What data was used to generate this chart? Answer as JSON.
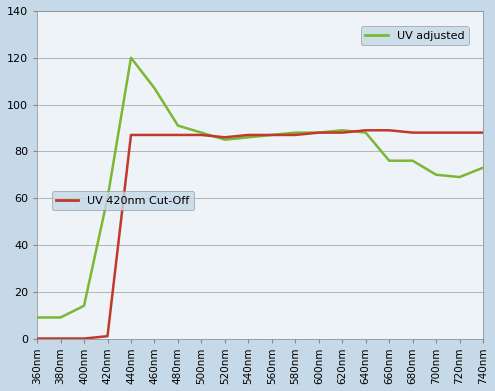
{
  "x_labels": [
    "360nm",
    "380nm",
    "400nm",
    "420nm",
    "440nm",
    "460nm",
    "480nm",
    "500nm",
    "520nm",
    "540nm",
    "560nm",
    "580nm",
    "600nm",
    "620nm",
    "640nm",
    "660nm",
    "680nm",
    "700nm",
    "720nm",
    "740nm"
  ],
  "x_values": [
    360,
    380,
    400,
    420,
    440,
    460,
    480,
    500,
    520,
    540,
    560,
    580,
    600,
    620,
    640,
    660,
    680,
    700,
    720,
    740
  ],
  "uv_adjusted": [
    9,
    9,
    14,
    60,
    120,
    107,
    91,
    88,
    85,
    86,
    87,
    88,
    88,
    89,
    88,
    76,
    76,
    70,
    69,
    73
  ],
  "uv_cutoff": [
    0,
    0,
    0,
    1,
    87,
    87,
    87,
    87,
    86,
    87,
    87,
    87,
    88,
    88,
    89,
    89,
    88,
    88,
    88,
    88
  ],
  "uv_adjusted_color": "#7cb734",
  "uv_cutoff_color": "#c0392b",
  "uv_adjusted_label": "UV adjusted",
  "uv_cutoff_label": "UV 420nm Cut-Off",
  "ylim": [
    0,
    140
  ],
  "yticks": [
    0,
    20,
    40,
    60,
    80,
    100,
    120,
    140
  ],
  "bg_outer": "#c5d9e8",
  "bg_inner": "#eef3f8",
  "grid_color": "#aaaaaa",
  "legend_bg": "#c5d9e8",
  "line_width": 1.8
}
